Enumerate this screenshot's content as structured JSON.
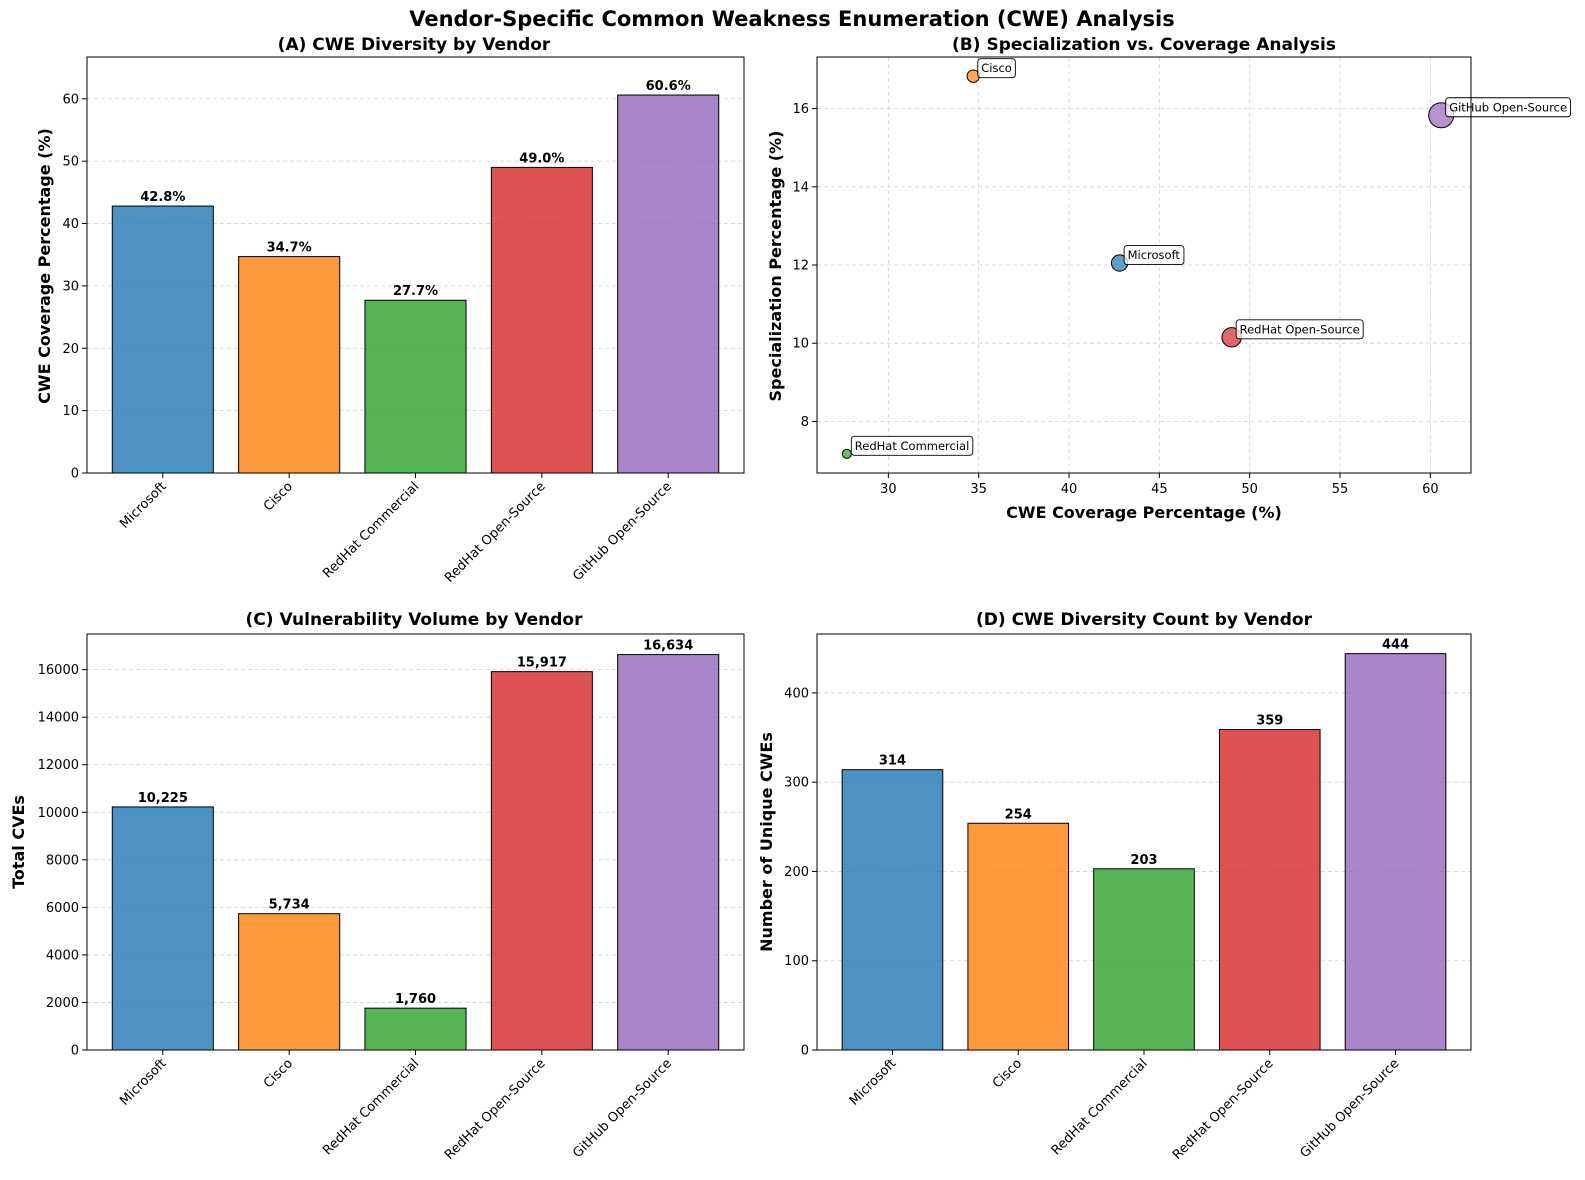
{
  "figure": {
    "title": "Vendor-Specific Common Weakness Enumeration (CWE) Analysis"
  },
  "colors": {
    "Microsoft": "#1f77b4",
    "Cisco": "#ff7f0e",
    "RedHat Commercial": "#2ca02c",
    "RedHat Open-Source": "#d62728",
    "GitHub Open-Source": "#9467bd"
  },
  "chart_data": [
    {
      "id": "A",
      "type": "bar",
      "title": "(A) CWE Diversity by Vendor",
      "xlabel": "",
      "ylabel": "CWE Coverage Percentage (%)",
      "categories": [
        "Microsoft",
        "Cisco",
        "RedHat Commercial",
        "RedHat Open-Source",
        "GitHub Open-Source"
      ],
      "values": [
        42.8,
        34.7,
        27.7,
        49.0,
        60.6
      ],
      "value_labels": [
        "42.8%",
        "34.7%",
        "27.7%",
        "49.0%",
        "60.6%"
      ],
      "ylim": [
        0,
        66.7
      ],
      "yticks": [
        0,
        10,
        20,
        30,
        40,
        50,
        60
      ],
      "ytick_labels": [
        "0",
        "10",
        "20",
        "30",
        "40",
        "50",
        "60"
      ],
      "grid": "y"
    },
    {
      "id": "B",
      "type": "scatter",
      "title": "(B) Specialization vs. Coverage Analysis",
      "xlabel": "CWE Coverage Percentage (%)",
      "ylabel": "Specialization Percentage (%)",
      "points": [
        {
          "label": "Microsoft",
          "x": 42.8,
          "y": 12.05,
          "size": 314
        },
        {
          "label": "Cisco",
          "x": 34.7,
          "y": 16.83,
          "size": 254
        },
        {
          "label": "RedHat Commercial",
          "x": 27.7,
          "y": 7.17,
          "size": 203
        },
        {
          "label": "RedHat Open-Source",
          "x": 49.0,
          "y": 10.15,
          "size": 359
        },
        {
          "label": "GitHub Open-Source",
          "x": 60.6,
          "y": 15.83,
          "size": 444
        }
      ],
      "xlim": [
        26.05,
        62.25
      ],
      "ylim": [
        6.68,
        17.32
      ],
      "xticks": [
        30,
        35,
        40,
        45,
        50,
        55,
        60
      ],
      "xtick_labels": [
        "30",
        "35",
        "40",
        "45",
        "50",
        "55",
        "60"
      ],
      "yticks": [
        8,
        10,
        12,
        14,
        16
      ],
      "ytick_labels": [
        "8",
        "10",
        "12",
        "14",
        "16"
      ],
      "grid": "both"
    },
    {
      "id": "C",
      "type": "bar",
      "title": "(C) Vulnerability Volume by Vendor",
      "xlabel": "",
      "ylabel": "Total CVEs",
      "categories": [
        "Microsoft",
        "Cisco",
        "RedHat Commercial",
        "RedHat Open-Source",
        "GitHub Open-Source"
      ],
      "values": [
        10225,
        5734,
        1760,
        15917,
        16634
      ],
      "value_labels": [
        "10,225",
        "5,734",
        "1,760",
        "15,917",
        "16,634"
      ],
      "ylim": [
        0,
        17500
      ],
      "yticks": [
        0,
        2000,
        4000,
        6000,
        8000,
        10000,
        12000,
        14000,
        16000
      ],
      "ytick_labels": [
        "0",
        "2000",
        "4000",
        "6000",
        "8000",
        "10000",
        "12000",
        "14000",
        "16000"
      ],
      "grid": "y"
    },
    {
      "id": "D",
      "type": "bar",
      "title": "(D) CWE Diversity Count by Vendor",
      "xlabel": "",
      "ylabel": "Number of Unique CWEs",
      "categories": [
        "Microsoft",
        "Cisco",
        "RedHat Commercial",
        "RedHat Open-Source",
        "GitHub Open-Source"
      ],
      "values": [
        314,
        254,
        203,
        359,
        444
      ],
      "value_labels": [
        "314",
        "254",
        "203",
        "359",
        "444"
      ],
      "ylim": [
        0,
        466
      ],
      "yticks": [
        0,
        100,
        200,
        300,
        400
      ],
      "ytick_labels": [
        "0",
        "100",
        "200",
        "300",
        "400"
      ],
      "grid": "y"
    }
  ]
}
